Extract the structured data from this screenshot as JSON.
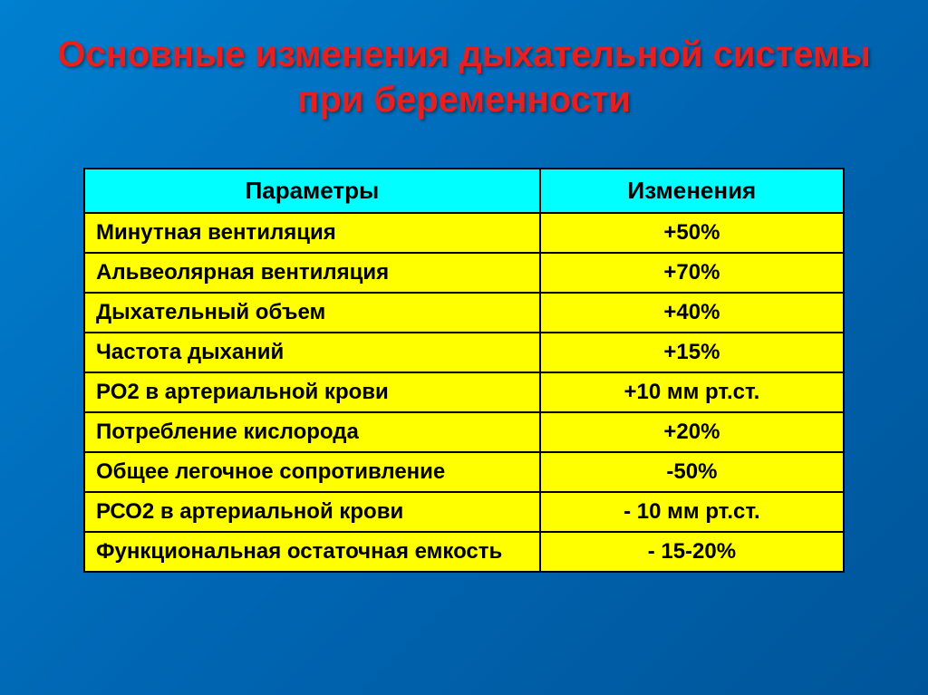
{
  "title": "Основные изменения дыхательной системы при беременности",
  "table": {
    "columns": [
      "Параметры",
      "Изменения"
    ],
    "rows": [
      [
        "Минутная вентиляция",
        "+50%"
      ],
      [
        "Альвеолярная вентиляция",
        "+70%"
      ],
      [
        "Дыхательный объем",
        "+40%"
      ],
      [
        "Частота дыханий",
        "+15%"
      ],
      [
        "РО2 в артериальной крови",
        "+10 мм рт.ст."
      ],
      [
        "Потребление кислорода",
        "+20%"
      ],
      [
        "Общее легочное сопротивление",
        "-50%"
      ],
      [
        "РСО2 в артериальной крови",
        "- 10 мм рт.ст."
      ],
      [
        "Функциональная остаточная емкость",
        "- 15-20%"
      ]
    ],
    "header_bg": "#00ffff",
    "cell_bg": "#ffff00",
    "border_color": "#000000",
    "header_fontsize": 26,
    "cell_fontsize": 24,
    "col_widths": [
      "60%",
      "40%"
    ],
    "col_align": [
      "left",
      "center"
    ]
  },
  "styling": {
    "slide_bg_gradient": [
      "#0080d0",
      "#0066b3",
      "#005599"
    ],
    "title_color": "#e52020",
    "title_fontsize": 40,
    "title_shadow": "2px 2px 3px rgba(0,0,0,0.4)"
  }
}
